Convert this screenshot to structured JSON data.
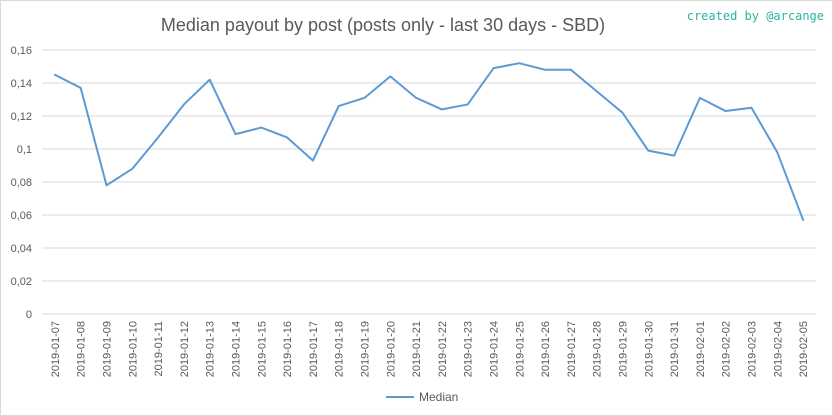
{
  "credit": "created by @arcange",
  "colors": {
    "series": "#5b9bd5",
    "grid": "#d9d9d9",
    "text": "#595959",
    "credit": "#2bb3a0"
  },
  "chart_data": {
    "type": "line",
    "title": "Median payout by post (posts only - last 30 days - SBD)",
    "xlabel": "",
    "ylabel": "",
    "ylim": [
      0,
      0.16
    ],
    "yticks": [
      "0",
      "0,02",
      "0,04",
      "0,06",
      "0,08",
      "0,1",
      "0,12",
      "0,14",
      "0,16"
    ],
    "grid": true,
    "legend_position": "bottom",
    "categories": [
      "2019-01-07",
      "2019-01-08",
      "2019-01-09",
      "2019-01-10",
      "2019-01-11",
      "2019-01-12",
      "2019-01-13",
      "2019-01-14",
      "2019-01-15",
      "2019-01-16",
      "2019-01-17",
      "2019-01-18",
      "2019-01-19",
      "2019-01-20",
      "2019-01-21",
      "2019-01-22",
      "2019-01-23",
      "2019-01-24",
      "2019-01-25",
      "2019-01-26",
      "2019-01-27",
      "2019-01-28",
      "2019-01-29",
      "2019-01-30",
      "2019-01-31",
      "2019-02-01",
      "2019-02-02",
      "2019-02-03",
      "2019-02-04",
      "2019-02-05"
    ],
    "series": [
      {
        "name": "Median",
        "values": [
          0.145,
          0.137,
          0.078,
          0.088,
          0.107,
          0.127,
          0.142,
          0.109,
          0.113,
          0.107,
          0.093,
          0.126,
          0.131,
          0.144,
          0.131,
          0.124,
          0.127,
          0.149,
          0.152,
          0.148,
          0.148,
          0.135,
          0.122,
          0.099,
          0.096,
          0.131,
          0.123,
          0.125,
          0.098,
          0.057
        ]
      }
    ]
  }
}
